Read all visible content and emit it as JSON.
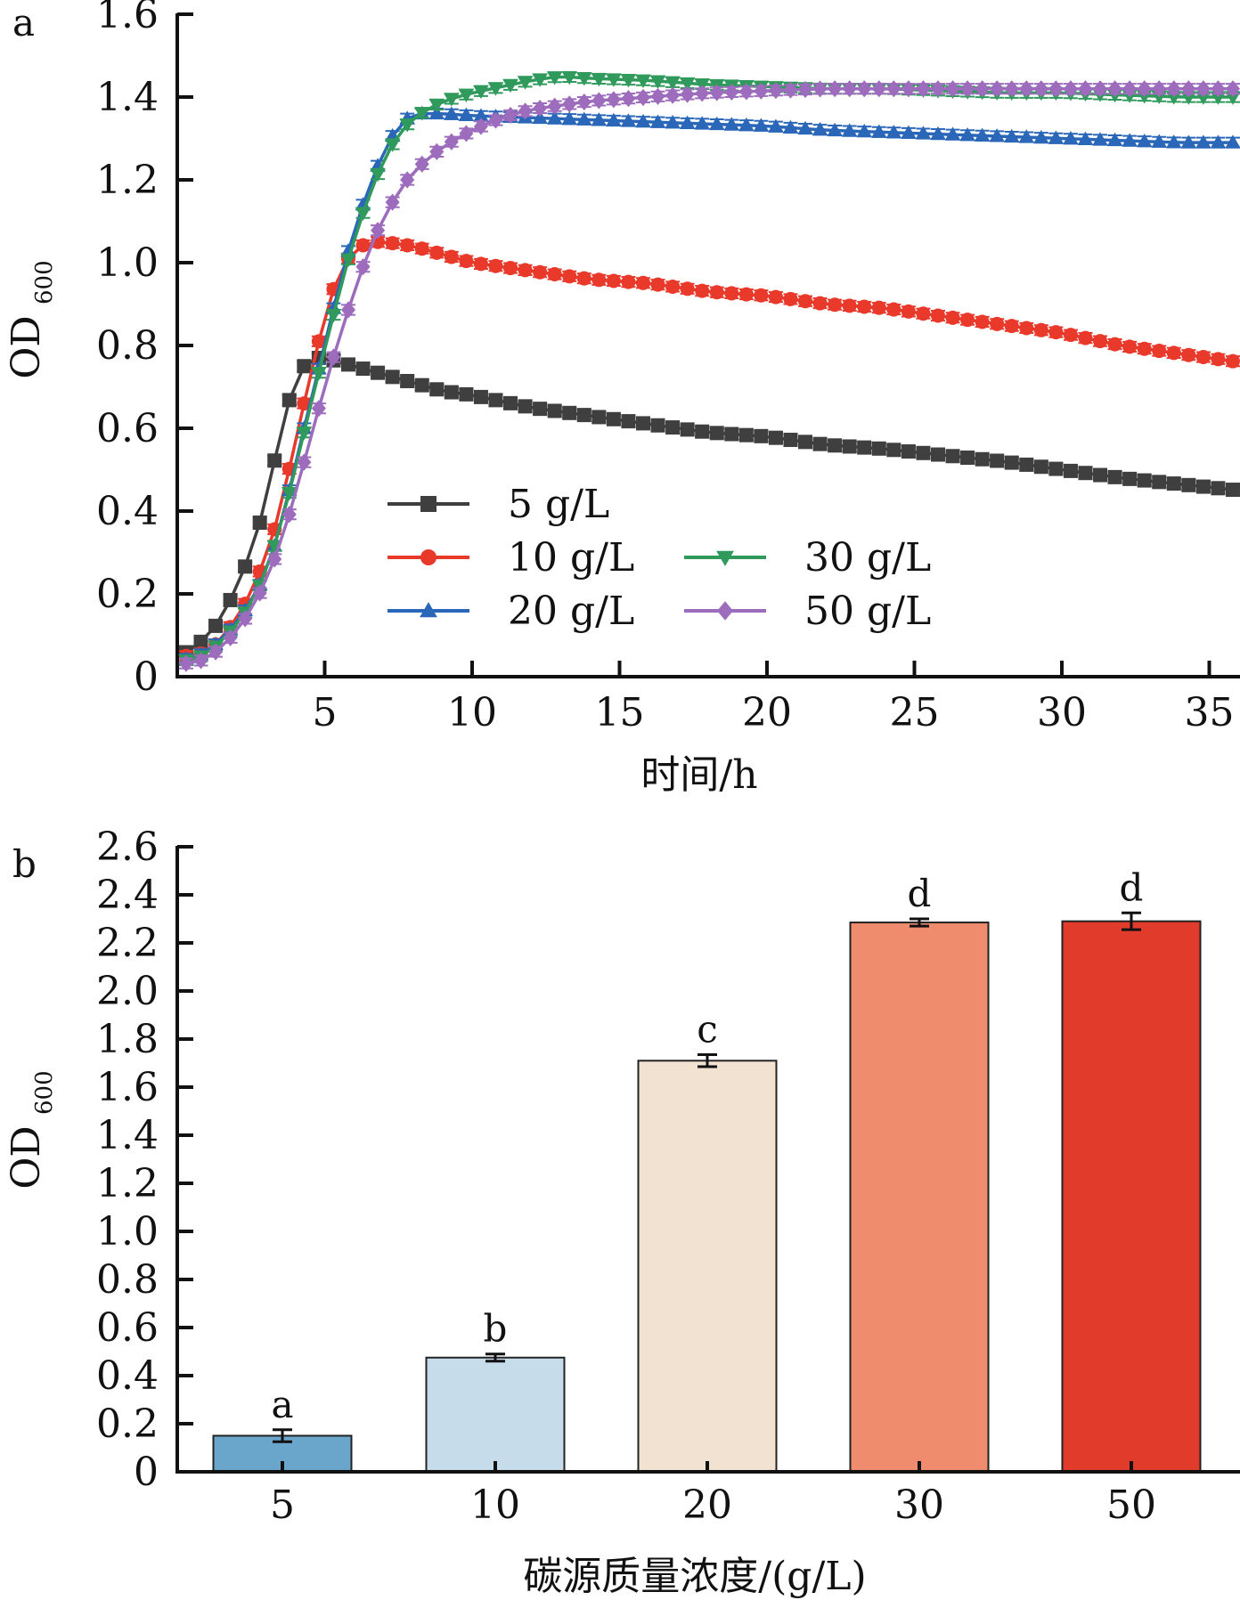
{
  "panels": {
    "a": {
      "label": "a"
    },
    "b": {
      "label": "b"
    }
  },
  "chart_data": [
    {
      "type": "line",
      "panel": "a",
      "title": "",
      "xlabel": "时间/h",
      "ylabel": "OD",
      "ylabel_sub": "600",
      "xlim": [
        0,
        36
      ],
      "ylim": [
        0,
        1.6
      ],
      "xticks": [
        5,
        10,
        15,
        20,
        25,
        30,
        35
      ],
      "xtick_labels": [
        "5",
        "10",
        "15",
        "20",
        "25",
        "30",
        "35"
      ],
      "yticks": [
        0,
        0.2,
        0.4,
        0.6,
        0.8,
        1.0,
        1.2,
        1.4,
        1.6
      ],
      "ytick_labels": [
        "0",
        "0.2",
        "0.4",
        "0.6",
        "0.8",
        "1.0",
        "1.2",
        "1.4",
        "1.6"
      ],
      "grid": false,
      "legend_position": "lower-middle",
      "series": [
        {
          "name": "5 g/L",
          "color": "#3f3f3f",
          "marker": "square",
          "x": [
            0,
            0.5,
            1,
            1.5,
            2,
            2.5,
            3,
            3.5,
            4,
            4.5,
            5,
            6,
            7,
            8,
            9,
            10,
            12,
            14,
            16,
            18,
            20,
            22,
            24,
            26,
            28,
            30,
            32,
            34,
            36
          ],
          "y": [
            0.05,
            0.065,
            0.097,
            0.14,
            0.215,
            0.3,
            0.42,
            0.59,
            0.72,
            0.77,
            0.77,
            0.75,
            0.73,
            0.71,
            0.69,
            0.68,
            0.65,
            0.63,
            0.61,
            0.59,
            0.58,
            0.56,
            0.55,
            0.535,
            0.52,
            0.5,
            0.48,
            0.465,
            0.45
          ]
        },
        {
          "name": "10 g/L",
          "color": "#e8392b",
          "marker": "circle",
          "x": [
            0,
            0.5,
            1,
            1.5,
            2,
            2.5,
            3,
            3.5,
            4,
            4.5,
            5,
            5.5,
            6,
            6.5,
            7,
            8,
            10,
            12,
            14,
            16,
            18,
            20,
            22,
            24,
            26,
            28,
            30,
            32,
            34,
            36
          ],
          "y": [
            0.05,
            0.05,
            0.06,
            0.09,
            0.14,
            0.2,
            0.29,
            0.4,
            0.57,
            0.72,
            0.87,
            0.98,
            1.03,
            1.05,
            1.05,
            1.04,
            1.0,
            0.98,
            0.96,
            0.95,
            0.93,
            0.92,
            0.9,
            0.89,
            0.87,
            0.85,
            0.83,
            0.8,
            0.78,
            0.76
          ]
        },
        {
          "name": "20 g/L",
          "color": "#2a67b8",
          "marker": "triangle-up",
          "x": [
            0,
            0.5,
            1,
            1.5,
            2,
            2.5,
            3,
            3.5,
            4,
            4.5,
            5,
            5.5,
            6,
            6.5,
            7,
            7.5,
            8,
            9,
            10,
            12,
            14,
            16,
            18,
            20,
            22,
            24,
            26,
            28,
            30,
            32,
            34,
            36
          ],
          "y": [
            0.04,
            0.045,
            0.06,
            0.09,
            0.13,
            0.18,
            0.25,
            0.36,
            0.51,
            0.66,
            0.8,
            0.95,
            1.08,
            1.18,
            1.27,
            1.33,
            1.36,
            1.36,
            1.355,
            1.35,
            1.345,
            1.34,
            1.335,
            1.33,
            1.32,
            1.315,
            1.31,
            1.305,
            1.3,
            1.295,
            1.29,
            1.29
          ]
        },
        {
          "name": "30 g/L",
          "color": "#2f9a5b",
          "marker": "triangle-down",
          "x": [
            0,
            0.5,
            1,
            1.5,
            2,
            2.5,
            3,
            3.5,
            4,
            4.5,
            5,
            5.5,
            6,
            6.5,
            7,
            7.5,
            8,
            9,
            10,
            12,
            13,
            14,
            16,
            18,
            20,
            22,
            24,
            26,
            28,
            30,
            32,
            34,
            36
          ],
          "y": [
            0.04,
            0.04,
            0.055,
            0.085,
            0.125,
            0.175,
            0.25,
            0.36,
            0.5,
            0.65,
            0.79,
            0.93,
            1.06,
            1.16,
            1.25,
            1.31,
            1.35,
            1.39,
            1.41,
            1.44,
            1.45,
            1.445,
            1.44,
            1.43,
            1.425,
            1.42,
            1.42,
            1.415,
            1.41,
            1.41,
            1.405,
            1.4,
            1.4
          ]
        },
        {
          "name": "50 g/L",
          "color": "#9d6cbc",
          "marker": "diamond",
          "x": [
            0,
            0.5,
            1,
            1.5,
            2,
            2.5,
            3,
            3.5,
            4,
            4.5,
            5,
            5.5,
            6,
            6.5,
            7,
            7.5,
            8,
            9,
            10,
            11,
            12,
            14,
            16,
            18,
            20,
            22,
            24,
            26,
            28,
            30,
            32,
            34,
            36
          ],
          "y": [
            0.035,
            0.03,
            0.045,
            0.07,
            0.11,
            0.16,
            0.23,
            0.32,
            0.44,
            0.57,
            0.7,
            0.82,
            0.93,
            1.03,
            1.11,
            1.17,
            1.22,
            1.28,
            1.32,
            1.35,
            1.37,
            1.39,
            1.4,
            1.41,
            1.415,
            1.42,
            1.42,
            1.42,
            1.42,
            1.42,
            1.42,
            1.42,
            1.42
          ]
        }
      ]
    },
    {
      "type": "bar",
      "panel": "b",
      "title": "",
      "xlabel": "碳源质量浓度/(g/L)",
      "ylabel": "OD",
      "ylabel_sub": "600",
      "ylim": [
        0,
        2.6
      ],
      "yticks": [
        0,
        0.2,
        0.4,
        0.6,
        0.8,
        1.0,
        1.2,
        1.4,
        1.6,
        1.8,
        2.0,
        2.2,
        2.4,
        2.6
      ],
      "ytick_labels": [
        "0",
        "0.2",
        "0.4",
        "0.6",
        "0.8",
        "1.0",
        "1.2",
        "1.4",
        "1.6",
        "1.8",
        "2.0",
        "2.2",
        "2.4",
        "2.6"
      ],
      "grid": false,
      "categories": [
        "5",
        "10",
        "20",
        "30",
        "50"
      ],
      "values": [
        0.15,
        0.475,
        1.71,
        2.285,
        2.29
      ],
      "errors": [
        0.025,
        0.015,
        0.025,
        0.015,
        0.035
      ],
      "significance": [
        "a",
        "b",
        "c",
        "d",
        "d"
      ],
      "colors": [
        "#6aa5cc",
        "#c6dcea",
        "#f2e2d2",
        "#ef8c6e",
        "#e13c2b"
      ]
    }
  ]
}
